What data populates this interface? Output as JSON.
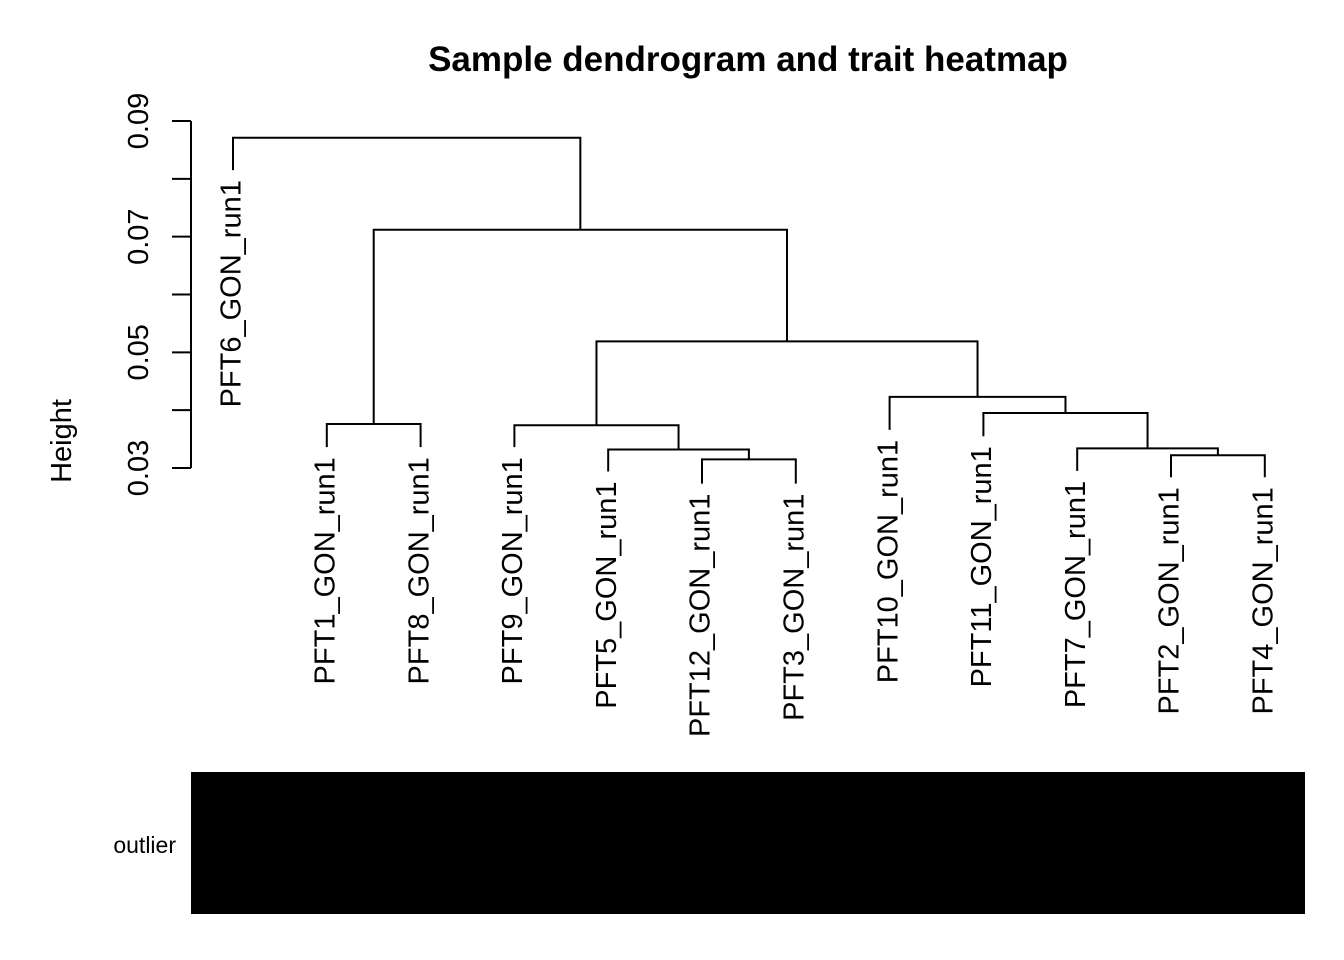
{
  "chart_data": {
    "type": "dendrogram",
    "title": "Sample dendrogram and trait heatmap",
    "ylabel": "Height",
    "yticks": [
      0.03,
      0.04,
      0.05,
      0.06,
      0.07,
      0.08,
      0.09
    ],
    "ytick_labels": [
      "0.03",
      "",
      "0.05",
      "",
      "0.07",
      "",
      "0.09"
    ],
    "ylim": [
      0.03,
      0.09
    ],
    "leaves": [
      {
        "label": "PFT6_GON_run1",
        "leaf_height": 0.0815
      },
      {
        "label": "PFT1_GON_run1",
        "leaf_height": 0.0336
      },
      {
        "label": "PFT8_GON_run1",
        "leaf_height": 0.0336
      },
      {
        "label": "PFT9_GON_run1",
        "leaf_height": 0.0336
      },
      {
        "label": "PFT5_GON_run1",
        "leaf_height": 0.0294
      },
      {
        "label": "PFT12_GON_run1",
        "leaf_height": 0.0273
      },
      {
        "label": "PFT3_GON_run1",
        "leaf_height": 0.0273
      },
      {
        "label": "PFT10_GON_run1",
        "leaf_height": 0.0366
      },
      {
        "label": "PFT11_GON_run1",
        "leaf_height": 0.0355
      },
      {
        "label": "PFT7_GON_run1",
        "leaf_height": 0.0295
      },
      {
        "label": "PFT2_GON_run1",
        "leaf_height": 0.0284
      },
      {
        "label": "PFT4_GON_run1",
        "leaf_height": 0.0284
      }
    ],
    "merges": [
      {
        "left": "PFT12_GON_run1",
        "right": "PFT3_GON_run1",
        "height": 0.0315
      },
      {
        "left": "PFT2_GON_run1",
        "right": "PFT4_GON_run1",
        "height": 0.0322
      },
      {
        "left": "PFT5_GON_run1",
        "right": 0,
        "height": 0.0332
      },
      {
        "left": "PFT7_GON_run1",
        "right": 1,
        "height": 0.0334
      },
      {
        "left": "PFT1_GON_run1",
        "right": "PFT8_GON_run1",
        "height": 0.0376
      },
      {
        "left": "PFT9_GON_run1",
        "right": 2,
        "height": 0.0374
      },
      {
        "left": "PFT11_GON_run1",
        "right": 3,
        "height": 0.0395
      },
      {
        "left": "PFT10_GON_run1",
        "right": 6,
        "height": 0.0423
      },
      {
        "left": 5,
        "right": 7,
        "height": 0.0519
      },
      {
        "left": 4,
        "right": 8,
        "height": 0.0712
      },
      {
        "left": "PFT6_GON_run1",
        "right": 9,
        "height": 0.0871
      }
    ],
    "trait_heatmap": {
      "traits": [
        {
          "name": "outlier",
          "color": "#000000"
        }
      ]
    }
  }
}
